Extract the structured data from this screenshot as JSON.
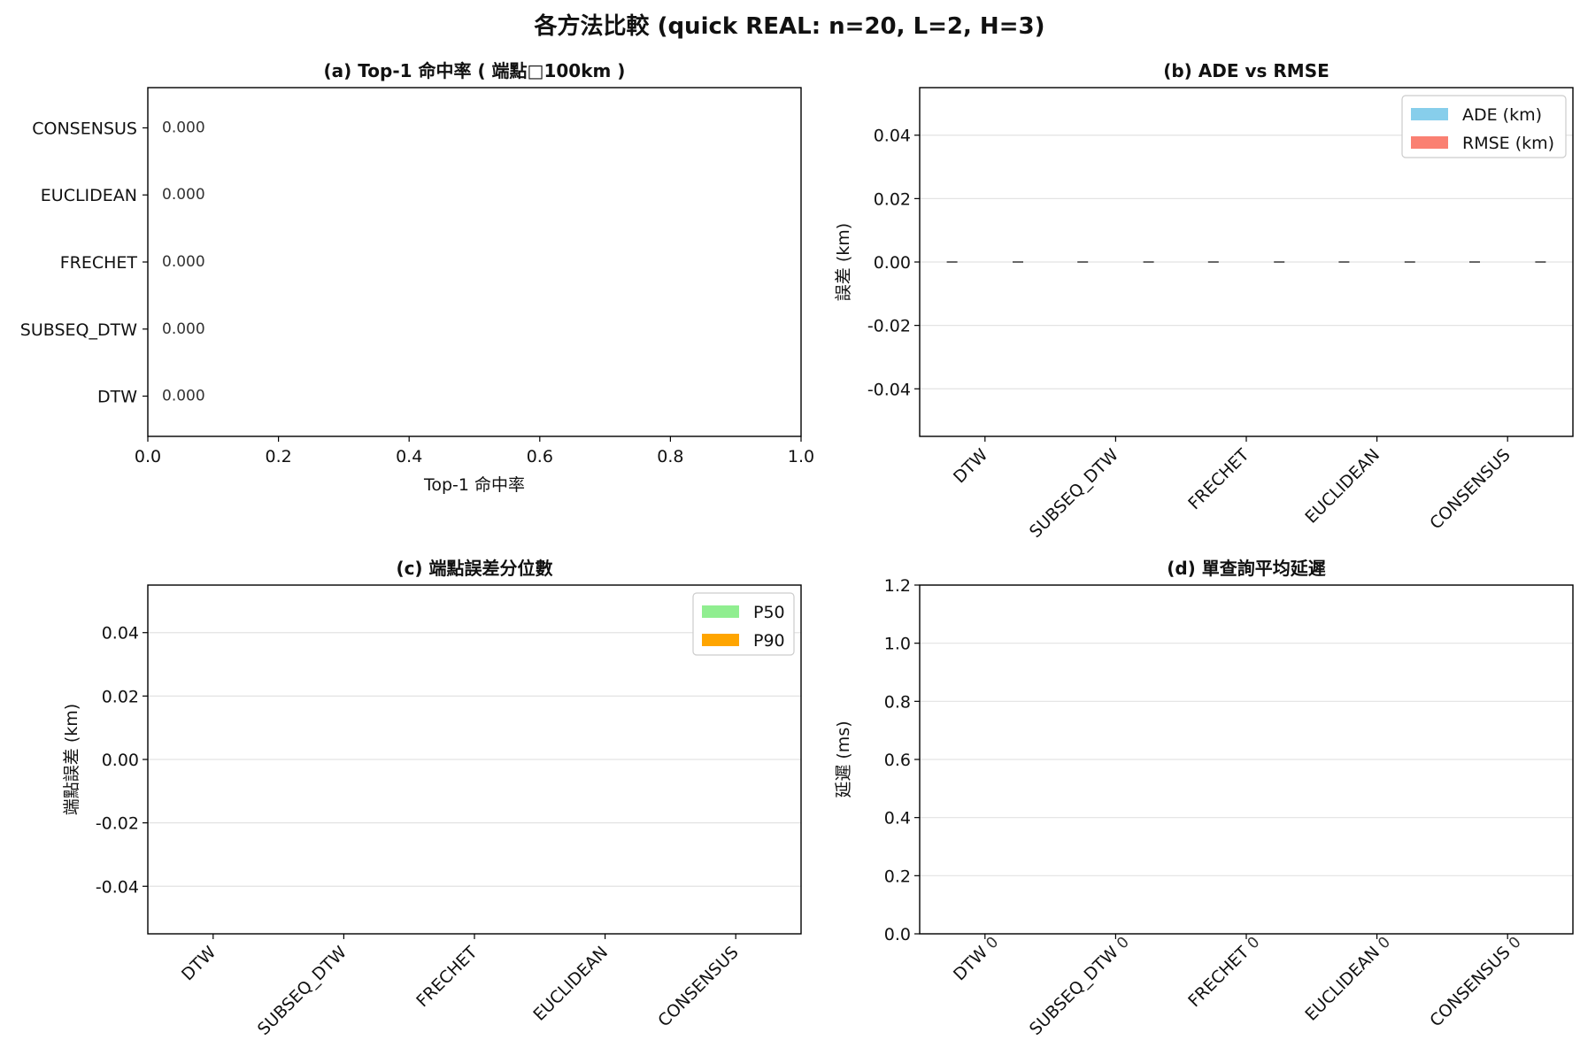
{
  "suptitle": "各方法比較 (quick REAL: n=20, L=2, H=3)",
  "chart_data": [
    {
      "panel": "a",
      "type": "bar",
      "orientation": "horizontal",
      "title": "(a) Top-1 命中率 ( 端點□100km )",
      "xlabel": "Top-1 命中率",
      "ylabel": "",
      "categories": [
        "DTW",
        "SUBSEQ_DTW",
        "FRECHET",
        "EUCLIDEAN",
        "CONSENSUS"
      ],
      "values": [
        0.0,
        0.0,
        0.0,
        0.0,
        0.0
      ],
      "value_labels": [
        "0.000",
        "0.000",
        "0.000",
        "0.000",
        "0.000"
      ],
      "xlim": [
        0.0,
        1.0
      ],
      "xticks": [
        "0.0",
        "0.2",
        "0.4",
        "0.6",
        "0.8",
        "1.0"
      ],
      "grid": false
    },
    {
      "panel": "b",
      "type": "bar",
      "title": "(b) ADE vs RMSE",
      "xlabel": "",
      "ylabel": "誤差 (km)",
      "categories": [
        "DTW",
        "SUBSEQ_DTW",
        "FRECHET",
        "EUCLIDEAN",
        "CONSENSUS"
      ],
      "series": [
        {
          "name": "ADE (km)",
          "color": "#87ceeb",
          "values": [
            0,
            0,
            0,
            0,
            0
          ]
        },
        {
          "name": "RMSE (km)",
          "color": "#fa8072",
          "values": [
            0,
            0,
            0,
            0,
            0
          ]
        }
      ],
      "error_bars": true,
      "ylim": [
        -0.055,
        0.055
      ],
      "yticks": [
        "-0.04",
        "-0.02",
        "0.00",
        "0.02",
        "0.04"
      ],
      "grid": true,
      "legend": "top-right"
    },
    {
      "panel": "c",
      "type": "bar",
      "title": "(c) 端點誤差分位數",
      "xlabel": "",
      "ylabel": "端點誤差 (km)",
      "categories": [
        "DTW",
        "SUBSEQ_DTW",
        "FRECHET",
        "EUCLIDEAN",
        "CONSENSUS"
      ],
      "series": [
        {
          "name": "P50",
          "color": "#90ee90",
          "values": [
            0,
            0,
            0,
            0,
            0
          ]
        },
        {
          "name": "P90",
          "color": "#ffa500",
          "values": [
            0,
            0,
            0,
            0,
            0
          ]
        }
      ],
      "ylim": [
        -0.055,
        0.055
      ],
      "yticks": [
        "-0.04",
        "-0.02",
        "0.00",
        "0.02",
        "0.04"
      ],
      "grid": true,
      "legend": "top-right"
    },
    {
      "panel": "d",
      "type": "bar",
      "title": "(d) 單查詢平均延遲",
      "xlabel": "",
      "ylabel": "延遲 (ms)",
      "categories": [
        "DTW",
        "SUBSEQ_DTW",
        "FRECHET",
        "EUCLIDEAN",
        "CONSENSUS"
      ],
      "values": [
        0,
        0,
        0,
        0,
        0
      ],
      "value_labels": [
        "0",
        "0",
        "0",
        "0",
        "0"
      ],
      "ylim": [
        0.0,
        1.2
      ],
      "yticks": [
        "0.0",
        "0.2",
        "0.4",
        "0.6",
        "0.8",
        "1.0",
        "1.2"
      ],
      "grid": true
    }
  ]
}
